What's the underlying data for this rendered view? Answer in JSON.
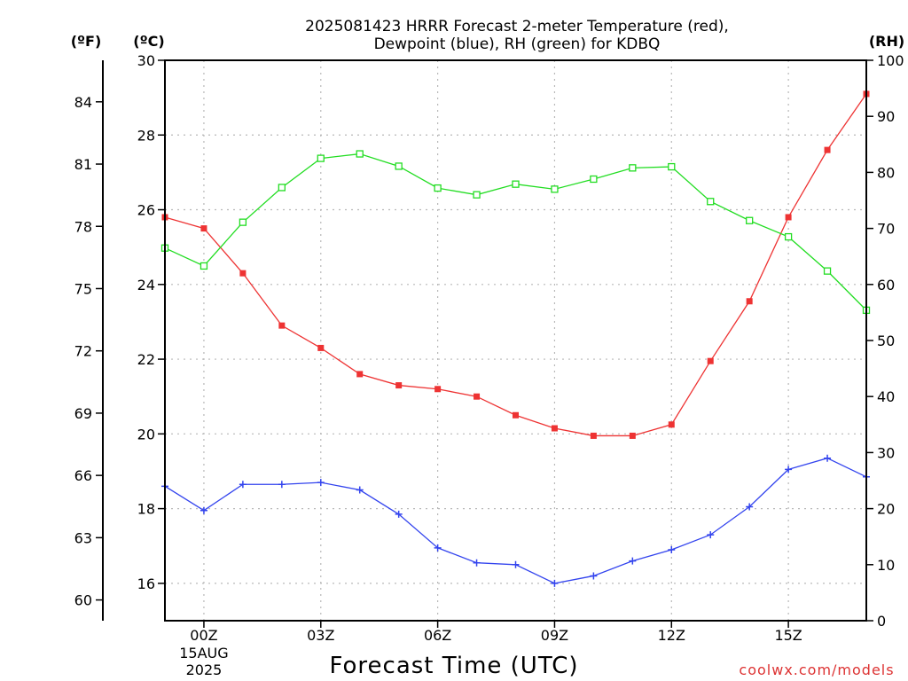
{
  "chart_data": {
    "type": "line",
    "title_lines": [
      "2025081423 HRRR Forecast 2-meter Temperature (red),",
      "Dewpoint (blue), RH (green) for KDBQ"
    ],
    "xlabel": "Forecast Time (UTC)",
    "x_ticks": [
      {
        "hour": 0,
        "label": "00Z",
        "sub": [
          "15AUG",
          "2025"
        ]
      },
      {
        "hour": 3,
        "label": "03Z",
        "sub": []
      },
      {
        "hour": 6,
        "label": "06Z",
        "sub": []
      },
      {
        "hour": 9,
        "label": "09Z",
        "sub": []
      },
      {
        "hour": 12,
        "label": "12Z",
        "sub": []
      },
      {
        "hour": 15,
        "label": "15Z",
        "sub": []
      }
    ],
    "xlim": [
      -1,
      17
    ],
    "y_left_c": {
      "unit": "(ºC)",
      "lim": [
        15,
        30
      ],
      "ticks": [
        16,
        18,
        20,
        22,
        24,
        26,
        28,
        30
      ]
    },
    "y_left_f": {
      "unit": "(ºF)",
      "ticks": [
        60,
        63,
        66,
        69,
        72,
        75,
        78,
        81,
        84
      ]
    },
    "y_right_rh": {
      "unit": "(RH)",
      "lim": [
        0,
        100
      ],
      "ticks": [
        0,
        10,
        20,
        30,
        40,
        50,
        60,
        70,
        80,
        90,
        100
      ]
    },
    "hours": [
      -1,
      0,
      1,
      2,
      3,
      4,
      5,
      6,
      7,
      8,
      9,
      10,
      11,
      12,
      13,
      14,
      15,
      16,
      17
    ],
    "series": [
      {
        "key": "temperature",
        "axis": "c",
        "color": "#ee3333",
        "marker": "filled-square",
        "values": [
          25.8,
          25.5,
          24.3,
          22.9,
          22.3,
          21.6,
          21.3,
          21.2,
          21.0,
          20.5,
          20.15,
          19.95,
          19.95,
          20.25,
          21.95,
          23.55,
          25.8,
          27.6,
          29.1
        ]
      },
      {
        "key": "dewpoint",
        "axis": "c",
        "color": "#3344ee",
        "marker": "plus",
        "values": [
          18.6,
          17.95,
          18.65,
          18.65,
          18.7,
          18.5,
          17.85,
          16.95,
          16.55,
          16.5,
          16.0,
          16.2,
          16.6,
          16.9,
          17.3,
          18.05,
          19.05,
          19.35,
          18.85
        ]
      },
      {
        "key": "rh",
        "axis": "rh",
        "color": "#22dd22",
        "marker": "open-square",
        "values": [
          66.5,
          63.3,
          71.1,
          77.3,
          82.5,
          83.3,
          81.1,
          77.2,
          76.0,
          77.9,
          77.0,
          78.8,
          80.8,
          81.0,
          74.8,
          71.4,
          68.5,
          62.4,
          55.4
        ]
      }
    ],
    "grid": true,
    "credit": "coolwx.com/models"
  },
  "colors": {
    "temperature": "#ee3333",
    "dewpoint": "#3344ee",
    "rh": "#22dd22",
    "credit": "#dd3333"
  }
}
